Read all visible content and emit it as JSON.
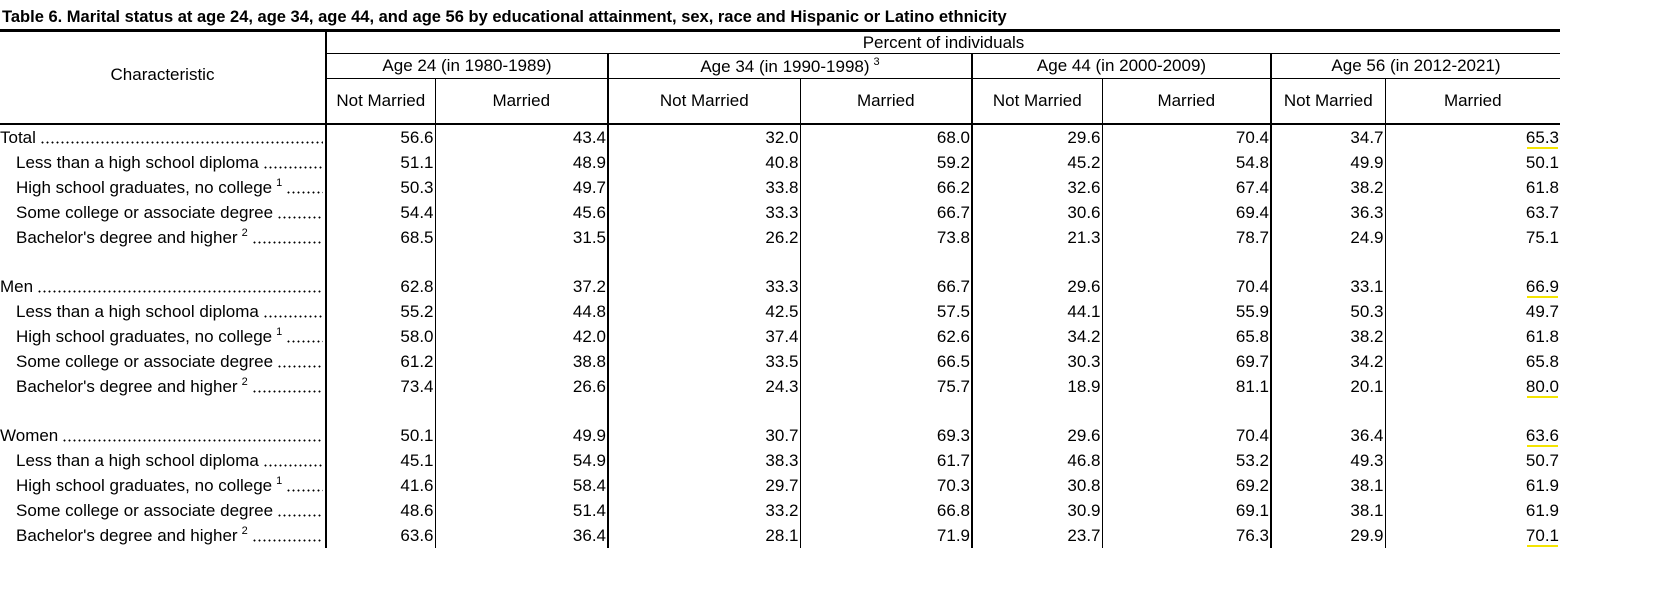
{
  "title": "Table 6.  Marital status at age 24, age 34, age 44, and age 56 by educational attainment, sex, race and Hispanic or Latino ethnicity",
  "table": {
    "header": {
      "characteristic": "Characteristic",
      "span_label": "Percent of individuals",
      "groups": [
        {
          "label": "Age 24 (in 1980-1989)",
          "columns": [
            "Not Married",
            "Married"
          ]
        },
        {
          "label": "Age 34 (in 1990-1998)",
          "note": "3",
          "columns": [
            "Not Married",
            "Married"
          ]
        },
        {
          "label": "Age 44 (in 2000-2009)",
          "columns": [
            "Not Married",
            "Married"
          ]
        },
        {
          "label": "Age 56 (in 2012-2021)",
          "columns": [
            "Not Married",
            "Married"
          ]
        }
      ]
    },
    "sections": [
      {
        "rows": [
          {
            "label": "Total",
            "values": [
              "56.6",
              "43.4",
              "32.0",
              "68.0",
              "29.6",
              "70.4",
              "34.7",
              "65.3"
            ],
            "underline_last": true
          },
          {
            "label": "Less than a high school diploma",
            "values": [
              "51.1",
              "48.9",
              "40.8",
              "59.2",
              "45.2",
              "54.8",
              "49.9",
              "50.1"
            ]
          },
          {
            "label": "High school graduates, no college",
            "note": "1",
            "values": [
              "50.3",
              "49.7",
              "33.8",
              "66.2",
              "32.6",
              "67.4",
              "38.2",
              "61.8"
            ]
          },
          {
            "label": "Some college or associate degree",
            "values": [
              "54.4",
              "45.6",
              "33.3",
              "66.7",
              "30.6",
              "69.4",
              "36.3",
              "63.7"
            ]
          },
          {
            "label": "Bachelor's degree and higher",
            "note": "2",
            "values": [
              "68.5",
              "31.5",
              "26.2",
              "73.8",
              "21.3",
              "78.7",
              "24.9",
              "75.1"
            ],
            "underline_label": true
          }
        ]
      },
      {
        "rows": [
          {
            "label": "Men",
            "values": [
              "62.8",
              "37.2",
              "33.3",
              "66.7",
              "29.6",
              "70.4",
              "33.1",
              "66.9"
            ],
            "underline_last": true
          },
          {
            "label": "Less than a high school diploma",
            "values": [
              "55.2",
              "44.8",
              "42.5",
              "57.5",
              "44.1",
              "55.9",
              "50.3",
              "49.7"
            ]
          },
          {
            "label": "High school graduates, no college",
            "note": "1",
            "values": [
              "58.0",
              "42.0",
              "37.4",
              "62.6",
              "34.2",
              "65.8",
              "38.2",
              "61.8"
            ]
          },
          {
            "label": "Some college or associate degree",
            "values": [
              "61.2",
              "38.8",
              "33.5",
              "66.5",
              "30.3",
              "69.7",
              "34.2",
              "65.8"
            ]
          },
          {
            "label": "Bachelor's degree and higher",
            "note": "2",
            "values": [
              "73.4",
              "26.6",
              "24.3",
              "75.7",
              "18.9",
              "81.1",
              "20.1",
              "80.0"
            ],
            "underline_label": true,
            "underline_last": true
          }
        ]
      },
      {
        "rows": [
          {
            "label": "Women",
            "values": [
              "50.1",
              "49.9",
              "30.7",
              "69.3",
              "29.6",
              "70.4",
              "36.4",
              "63.6"
            ],
            "underline_last": true
          },
          {
            "label": "Less than a high school diploma",
            "values": [
              "45.1",
              "54.9",
              "38.3",
              "61.7",
              "46.8",
              "53.2",
              "49.3",
              "50.7"
            ]
          },
          {
            "label": "High school graduates, no college",
            "note": "1",
            "values": [
              "41.6",
              "58.4",
              "29.7",
              "70.3",
              "30.8",
              "69.2",
              "38.1",
              "61.9"
            ]
          },
          {
            "label": "Some college or associate degree",
            "values": [
              "48.6",
              "51.4",
              "33.2",
              "66.8",
              "30.9",
              "69.1",
              "38.1",
              "61.9"
            ]
          },
          {
            "label": "Bachelor's degree and higher",
            "note": "2",
            "values": [
              "63.6",
              "36.4",
              "28.1",
              "71.9",
              "23.7",
              "76.3",
              "29.9",
              "70.1"
            ],
            "underline_label": true,
            "underline_last": true
          }
        ]
      }
    ]
  }
}
